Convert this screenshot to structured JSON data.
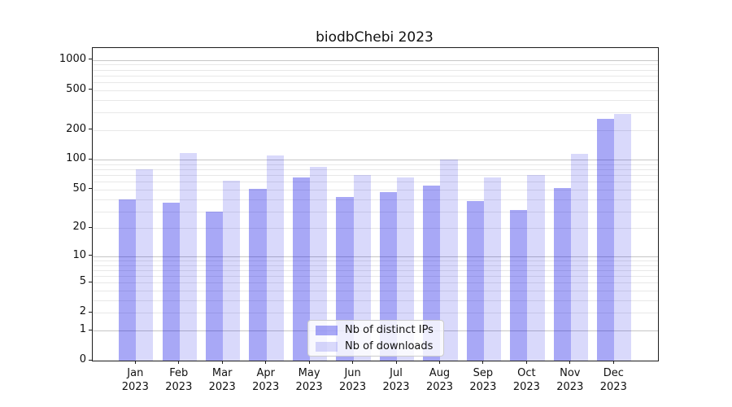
{
  "title": "biodbChebi 2023",
  "chart_data": {
    "type": "bar",
    "title": "biodbChebi 2023",
    "categories": [
      "Jan",
      "Feb",
      "Mar",
      "Apr",
      "May",
      "Jun",
      "Jul",
      "Aug",
      "Sep",
      "Oct",
      "Nov",
      "Dec"
    ],
    "year_label": "2023",
    "series": [
      {
        "name": "Nb of distinct IPs",
        "values": [
          40,
          37,
          30,
          51,
          66,
          42,
          47,
          55,
          38,
          31,
          52,
          260
        ]
      },
      {
        "name": "Nb of downloads",
        "values": [
          80,
          118,
          62,
          110,
          85,
          70,
          66,
          100,
          67,
          70,
          115,
          290
        ]
      }
    ],
    "yscale": "log(value+1)",
    "yticks": [
      0,
      1,
      2,
      5,
      10,
      20,
      50,
      100,
      200,
      500,
      1000
    ],
    "ylim": [
      0,
      1320
    ],
    "grid": true,
    "legend_position": "lower-center"
  },
  "colors": {
    "bar_ips": "rgba(0,0,230,0.34)",
    "bar_downloads": "rgba(0,0,230,0.15)",
    "grid_major": "#c6c6c6",
    "grid_minor": "#e8e8e8",
    "frame": "#1c1c1c",
    "text": "#111111"
  }
}
